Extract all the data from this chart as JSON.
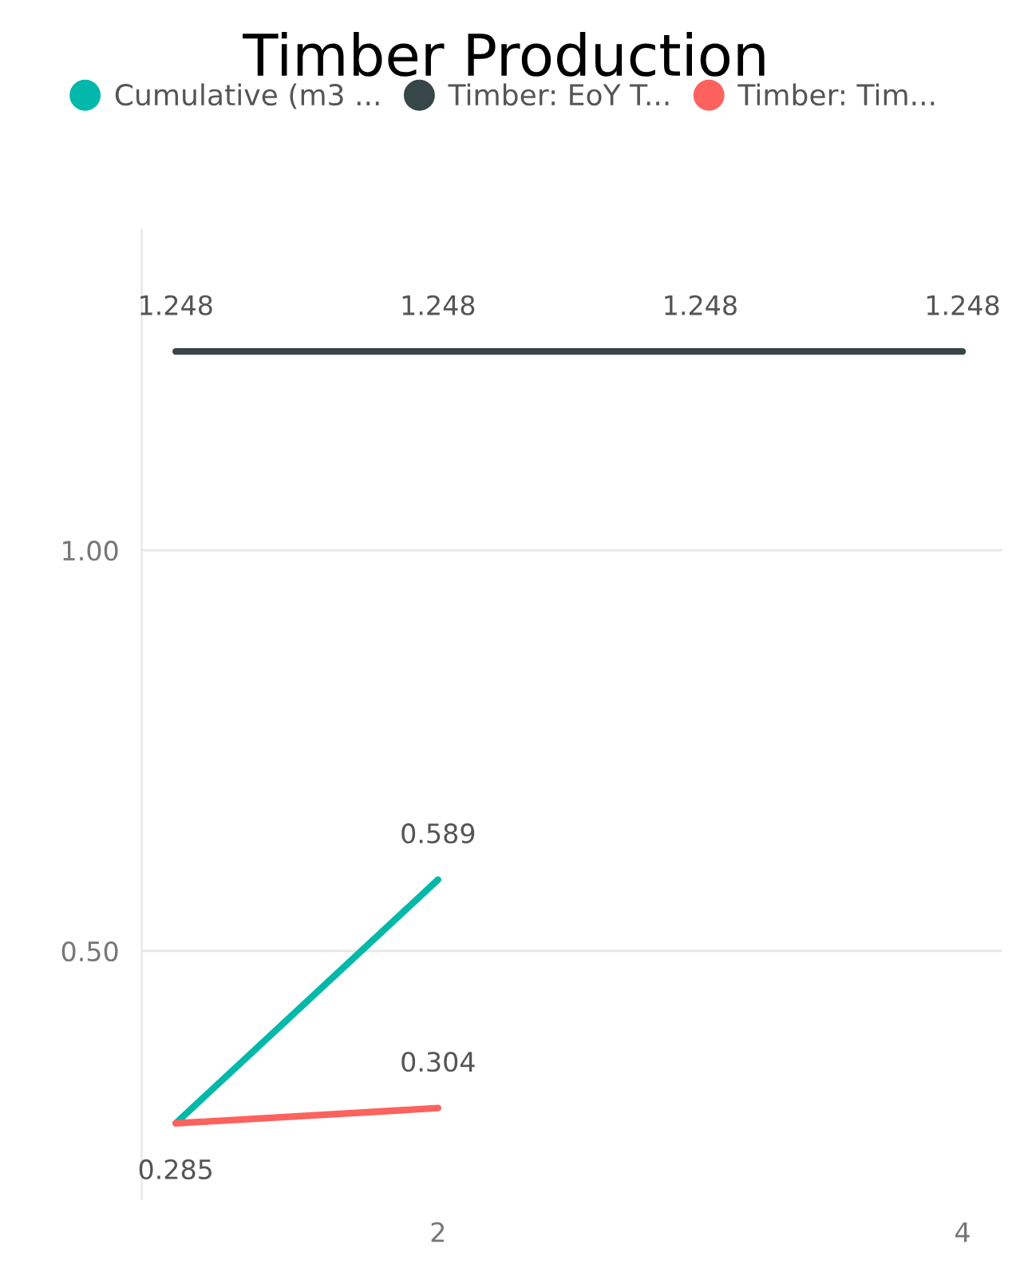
{
  "chart_data": {
    "type": "line",
    "title": "Timber Production",
    "x": [
      1,
      2,
      3,
      4
    ],
    "series": [
      {
        "name": "Cumulative (m3 ...",
        "color": "#01b8aa",
        "values": [
          0.285,
          0.589,
          null,
          null
        ],
        "value_labels": [
          "0.285",
          "0.589",
          null,
          null
        ]
      },
      {
        "name": "Timber: EoY T...",
        "color": "#374649",
        "values": [
          1.248,
          1.248,
          1.248,
          1.248
        ],
        "value_labels": [
          "1.248",
          "1.248",
          "1.248",
          "1.248"
        ]
      },
      {
        "name": "Timber: Tim...",
        "color": "#fd625e",
        "values": [
          0.285,
          0.304,
          null,
          null
        ],
        "value_labels": [
          null,
          "0.304",
          null,
          null
        ]
      }
    ],
    "xlim": [
      0.87,
      4.15
    ],
    "xticks": [
      2,
      4
    ],
    "ylim": [
      0.19,
      1.4
    ],
    "yticks": [
      {
        "value": 0.5,
        "label": "0.50"
      },
      {
        "value": 1.0,
        "label": "1.00"
      }
    ],
    "grid": "y",
    "legend": "top left",
    "line_style": "solid"
  }
}
